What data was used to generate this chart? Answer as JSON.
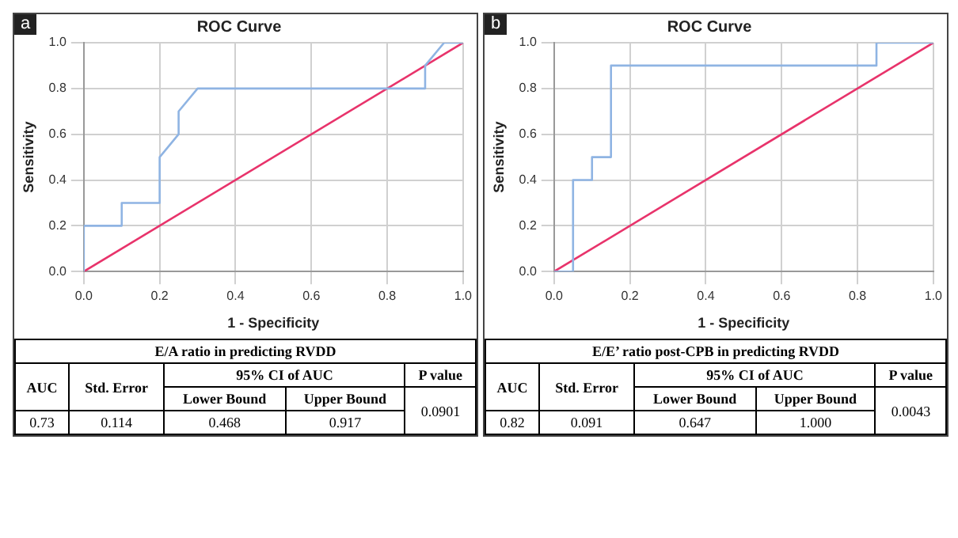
{
  "chart_data": [
    {
      "type": "line",
      "title": "ROC Curve",
      "xlabel": "1 - Specificity",
      "ylabel": "Sensitivity",
      "xlim": [
        0,
        1
      ],
      "ylim": [
        0,
        1
      ],
      "xticks": [
        {
          "value": 0,
          "label": "0.0"
        },
        {
          "value": 0.2,
          "label": "0.2"
        },
        {
          "value": 0.4,
          "label": "0.4"
        },
        {
          "value": 0.6,
          "label": "0.6"
        },
        {
          "value": 0.8,
          "label": "0.8"
        },
        {
          "value": 1,
          "label": "1.0"
        }
      ],
      "yticks": [
        {
          "value": 0,
          "label": "0.0"
        },
        {
          "value": 0.2,
          "label": "0.2"
        },
        {
          "value": 0.4,
          "label": "0.4"
        },
        {
          "value": 0.6,
          "label": "0.6"
        },
        {
          "value": 0.8,
          "label": "0.8"
        },
        {
          "value": 1,
          "label": "1.0"
        }
      ],
      "grid": true,
      "legend": false,
      "marker": "none",
      "series": [
        {
          "color": "#8fb4e3",
          "x": [
            0,
            0,
            0.1,
            0.1,
            0.2,
            0.2,
            0.25,
            0.25,
            0.3,
            0.9,
            0.9,
            0.95,
            1
          ],
          "values": [
            0,
            0.2,
            0.2,
            0.3,
            0.3,
            0.5,
            0.6,
            0.7,
            0.8,
            0.8,
            0.9,
            1,
            1
          ]
        },
        {
          "color": "#e8336b",
          "x": [
            0,
            1
          ],
          "values": [
            0,
            1
          ]
        }
      ],
      "annotations": [
        "a",
        "E/A ratio in predicting RVDD",
        "AUC",
        "Std. Error",
        "95% CI of AUC",
        "P value",
        "Lower Bound",
        "Upper Bound",
        "0.73",
        "0.114",
        "0.468",
        "0.917",
        "0.0901"
      ]
    },
    {
      "type": "line",
      "title": "ROC Curve",
      "xlabel": "1 - Specificity",
      "ylabel": "Sensitivity",
      "xlim": [
        0,
        1
      ],
      "ylim": [
        0,
        1
      ],
      "xticks": [
        {
          "value": 0,
          "label": "0.0"
        },
        {
          "value": 0.2,
          "label": "0.2"
        },
        {
          "value": 0.4,
          "label": "0.4"
        },
        {
          "value": 0.6,
          "label": "0.6"
        },
        {
          "value": 0.8,
          "label": "0.8"
        },
        {
          "value": 1,
          "label": "1.0"
        }
      ],
      "yticks": [
        {
          "value": 0,
          "label": "0.0"
        },
        {
          "value": 0.2,
          "label": "0.2"
        },
        {
          "value": 0.4,
          "label": "0.4"
        },
        {
          "value": 0.6,
          "label": "0.6"
        },
        {
          "value": 0.8,
          "label": "0.8"
        },
        {
          "value": 1,
          "label": "1.0"
        }
      ],
      "grid": true,
      "legend": false,
      "marker": "none",
      "series": [
        {
          "color": "#8fb4e3",
          "x": [
            0,
            0.05,
            0.05,
            0.1,
            0.1,
            0.15,
            0.15,
            0.85,
            0.85,
            1
          ],
          "values": [
            0,
            0,
            0.4,
            0.4,
            0.5,
            0.5,
            0.9,
            0.9,
            1,
            1
          ]
        },
        {
          "color": "#e8336b",
          "x": [
            0,
            1
          ],
          "values": [
            0,
            1
          ]
        }
      ],
      "annotations": [
        "b",
        "E/E’ ratio post-CPB in predicting RVDD",
        "AUC",
        "Std. Error",
        "95% CI of AUC",
        "P value",
        "Lower Bound",
        "Upper Bound",
        "0.82",
        "0.091",
        "0.647",
        "1.000",
        "0.0043"
      ]
    }
  ]
}
